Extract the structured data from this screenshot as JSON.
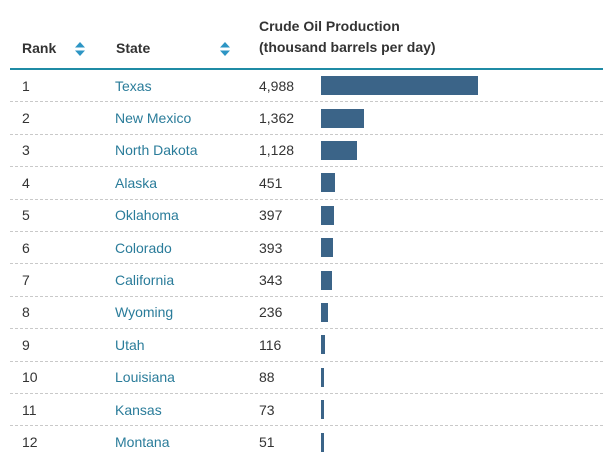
{
  "header": {
    "rank_label": "Rank",
    "state_label": "State",
    "production_label_line1": "Crude Oil Production",
    "production_label_line2": "(thousand barrels per day)"
  },
  "colors": {
    "bar": "#3b6488",
    "state_link": "#2a7c9a",
    "header_rule": "#1f8ba5",
    "sort_icon": "#2d95c4"
  },
  "icons": {
    "sort": "sort-arrows-icon"
  },
  "chart_data": {
    "type": "bar",
    "orientation": "horizontal",
    "title": "",
    "categories": [
      "Texas",
      "New Mexico",
      "North Dakota",
      "Alaska",
      "Oklahoma",
      "Colorado",
      "California",
      "Wyoming",
      "Utah",
      "Louisiana",
      "Kansas",
      "Montana"
    ],
    "values": [
      4988,
      1362,
      1128,
      451,
      397,
      393,
      343,
      236,
      116,
      88,
      73,
      51
    ],
    "xlim": [
      0,
      8900
    ]
  },
  "rows": [
    {
      "rank": "1",
      "state": "Texas",
      "value_text": "4,988"
    },
    {
      "rank": "2",
      "state": "New Mexico",
      "value_text": "1,362"
    },
    {
      "rank": "3",
      "state": "North Dakota",
      "value_text": "1,128"
    },
    {
      "rank": "4",
      "state": "Alaska",
      "value_text": "451"
    },
    {
      "rank": "5",
      "state": "Oklahoma",
      "value_text": "397"
    },
    {
      "rank": "6",
      "state": "Colorado",
      "value_text": "393"
    },
    {
      "rank": "7",
      "state": "California",
      "value_text": "343"
    },
    {
      "rank": "8",
      "state": "Wyoming",
      "value_text": "236"
    },
    {
      "rank": "9",
      "state": "Utah",
      "value_text": "116"
    },
    {
      "rank": "10",
      "state": "Louisiana",
      "value_text": "88"
    },
    {
      "rank": "11",
      "state": "Kansas",
      "value_text": "73"
    },
    {
      "rank": "12",
      "state": "Montana",
      "value_text": "51"
    }
  ]
}
